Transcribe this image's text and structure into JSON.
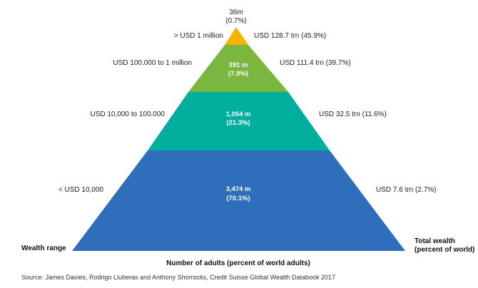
{
  "chart_data": {
    "type": "pyramid",
    "tiers": [
      {
        "wealth_range": "> USD 1 million",
        "adults": "36m",
        "adults_pct": "(0.7%)",
        "total_wealth": "USD 128.7 trn (45.9%)",
        "adults_millions": 36,
        "adults_share_pct": 0.7,
        "wealth_trn": 128.7,
        "wealth_share_pct": 45.9,
        "color": "#F5B400"
      },
      {
        "wealth_range": "USD 100,000  to 1 million",
        "adults": "391 m",
        "adults_pct": "(7.9%)",
        "total_wealth": "USD 111.4 trn (39.7%)",
        "adults_millions": 391,
        "adults_share_pct": 7.9,
        "wealth_trn": 111.4,
        "wealth_share_pct": 39.7,
        "color": "#7BB63F"
      },
      {
        "wealth_range": "USD 10,000  to 100,000",
        "adults": "1,054 m",
        "adults_pct": "(21.3%)",
        "total_wealth": "USD 32.5 trn (11.6%)",
        "adults_millions": 1054,
        "adults_share_pct": 21.3,
        "wealth_trn": 32.5,
        "wealth_share_pct": 11.6,
        "color": "#00AE9E"
      },
      {
        "wealth_range": "< USD 10,000",
        "adults": "3,474 m",
        "adults_pct": "(70.1%)",
        "total_wealth": "USD 7.6 trn (2.7%)",
        "adults_millions": 3474,
        "adults_share_pct": 70.1,
        "wealth_trn": 7.6,
        "wealth_share_pct": 2.7,
        "color": "#2F6EBA"
      }
    ],
    "left_axis_label": "Wealth range",
    "right_axis_label_line1": "Total wealth",
    "right_axis_label_line2": "(percent of world)",
    "bottom_label": "Number of adults (percent of world adults)",
    "source": "Source: James Davies, Rodrigo Lluberas and Anthony Shorrocks, Credit Suisse Global Wealth Databook 2017"
  }
}
